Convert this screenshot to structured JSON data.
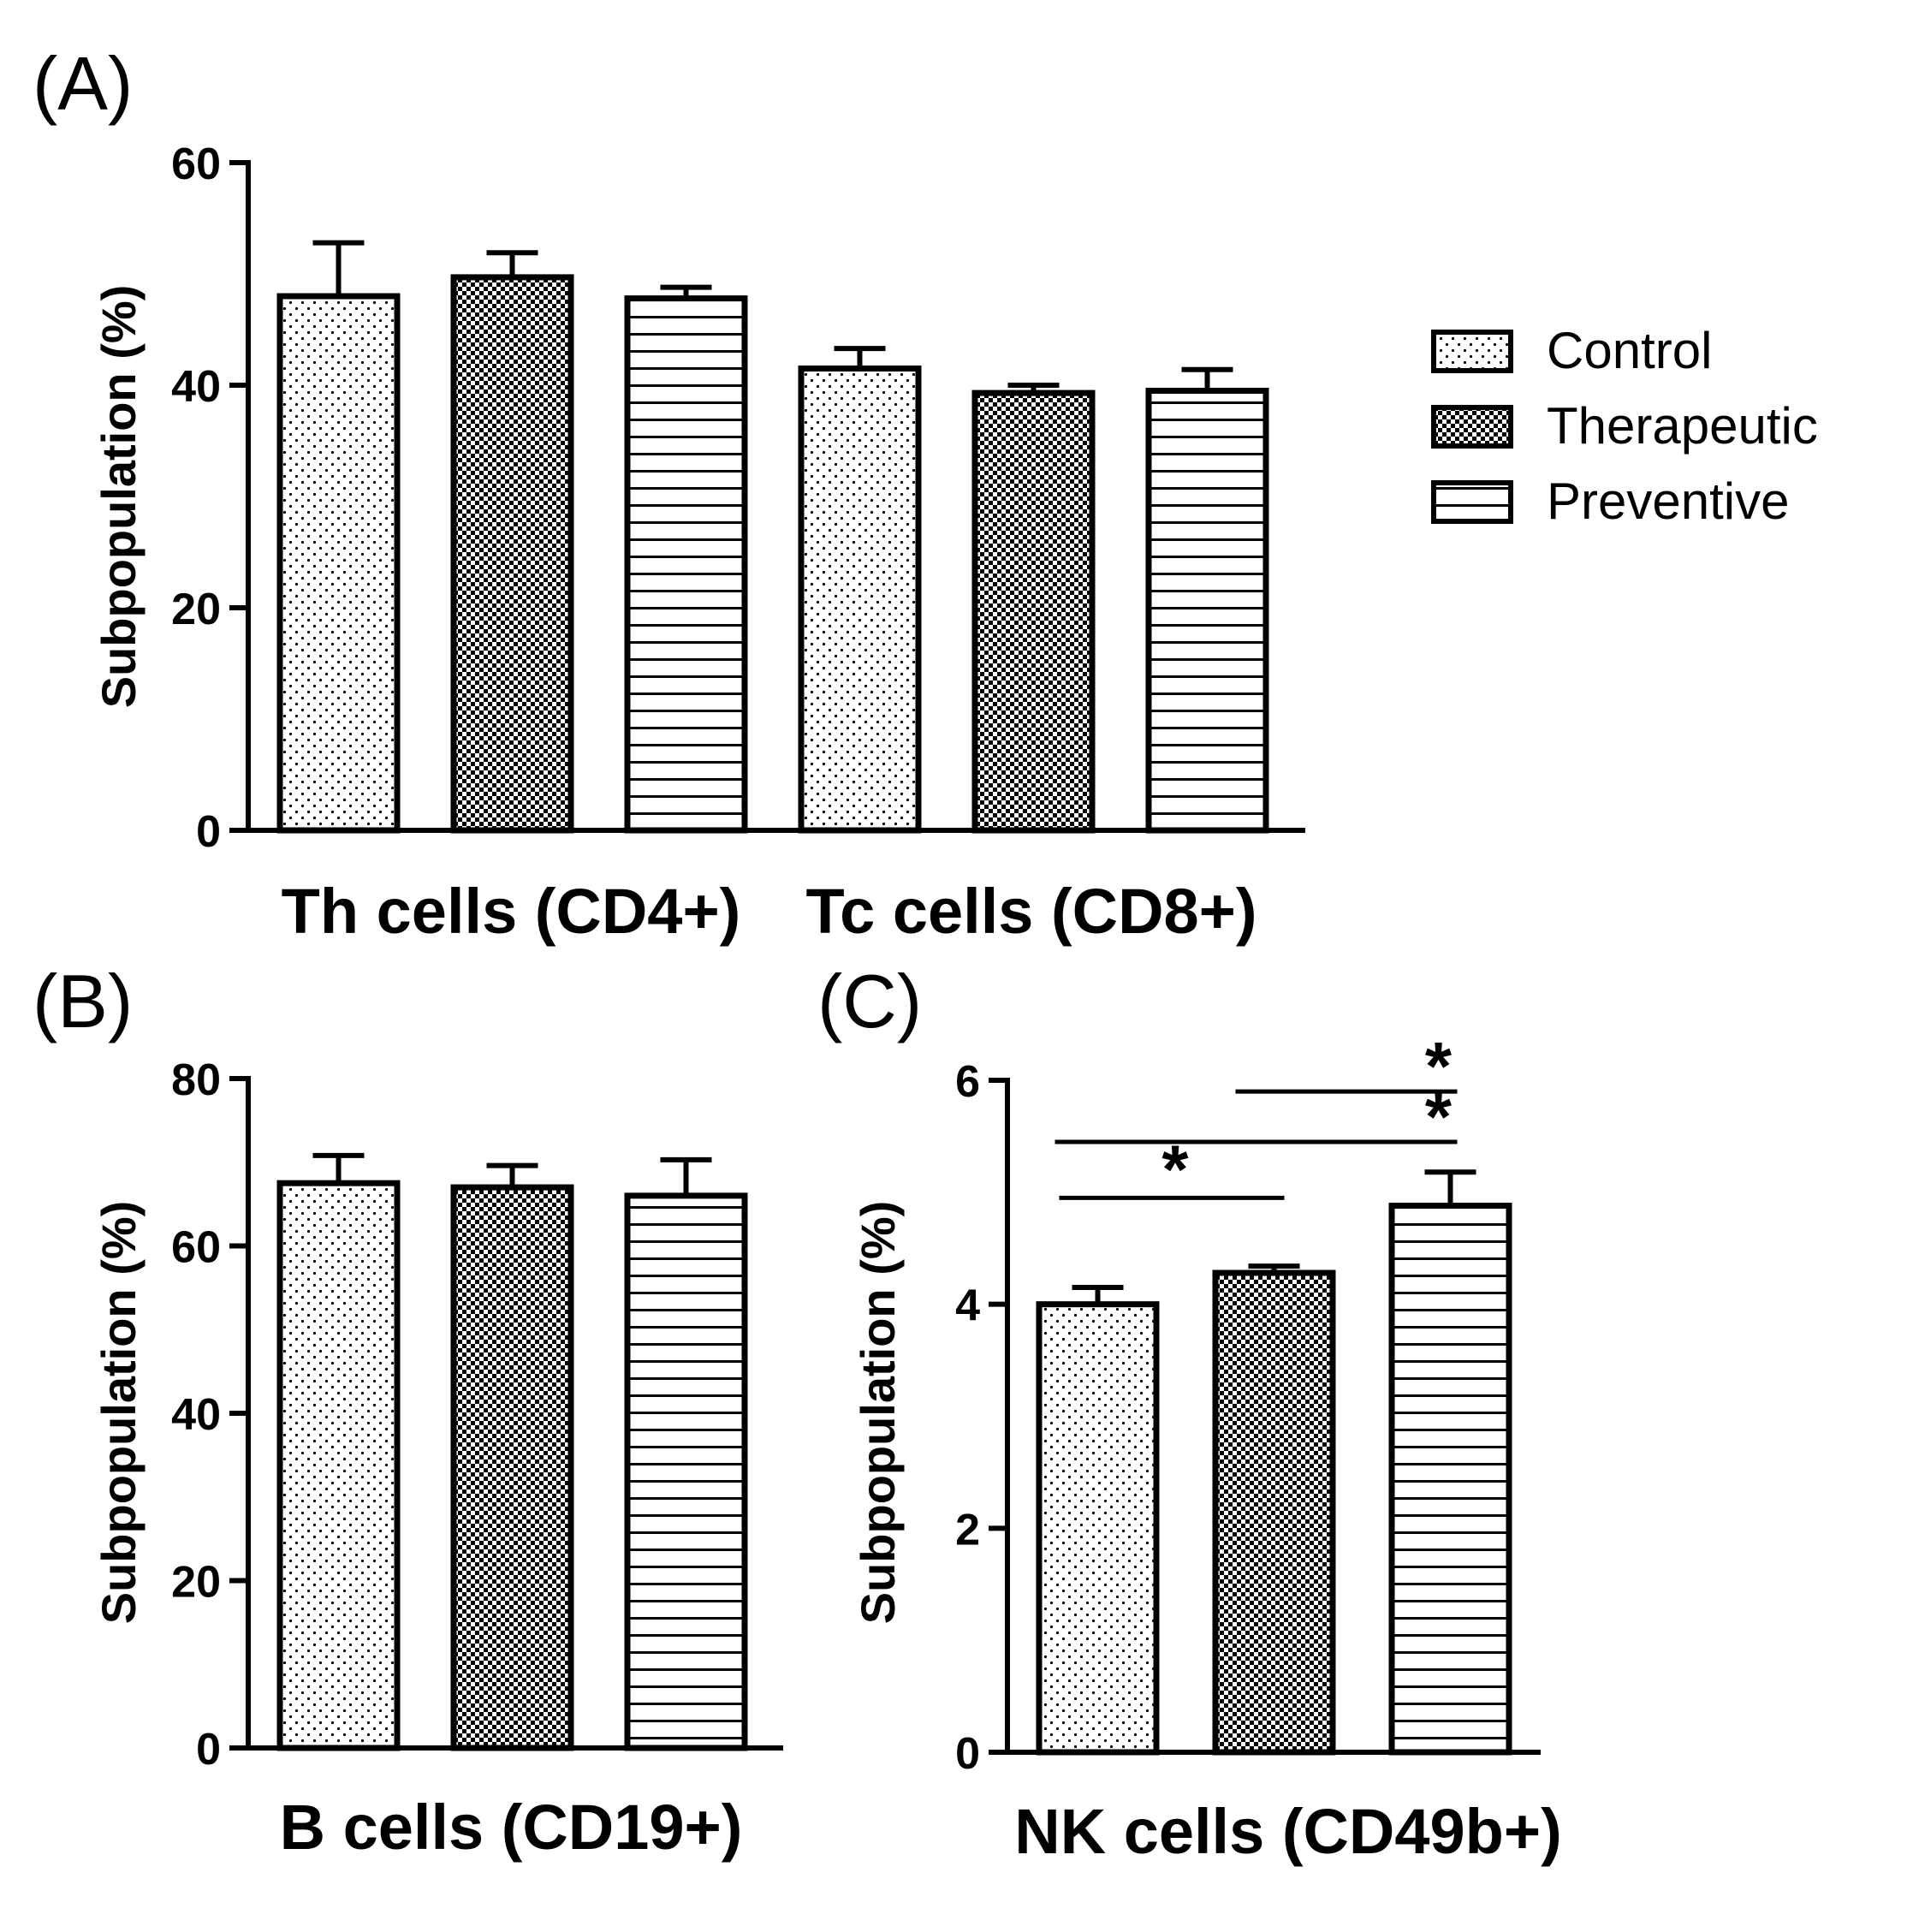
{
  "colors": {
    "ink": "#000000",
    "background": "#ffffff"
  },
  "legend": {
    "items": [
      {
        "label": "Control",
        "pattern": "dots"
      },
      {
        "label": "Therapeutic",
        "pattern": "checker"
      },
      {
        "label": "Preventive",
        "pattern": "stripes"
      }
    ]
  },
  "chart_data": [
    {
      "panel": "(A)",
      "type": "bar",
      "ylabel": "Subpopulation (%)",
      "ylim": [
        0,
        60
      ],
      "yticks": [
        0,
        20,
        40,
        60
      ],
      "categories": [
        "Th cells (CD4+)",
        "Tc cells (CD8+)"
      ],
      "series": [
        {
          "name": "Control",
          "values": [
            48.0,
            41.5
          ],
          "errors": [
            4.8,
            1.8
          ]
        },
        {
          "name": "Therapeutic",
          "values": [
            49.7,
            39.3
          ],
          "errors": [
            2.2,
            0.7
          ]
        },
        {
          "name": "Preventive",
          "values": [
            47.8,
            39.5
          ],
          "errors": [
            1.0,
            1.9
          ]
        }
      ],
      "significance": []
    },
    {
      "panel": "(B)",
      "type": "bar",
      "ylabel": "Subpopulation (%)",
      "ylim": [
        0,
        80
      ],
      "yticks": [
        0,
        20,
        40,
        60,
        80
      ],
      "categories": [
        "B cells (CD19+)"
      ],
      "series": [
        {
          "name": "Control",
          "values": [
            67.5
          ],
          "errors": [
            3.3
          ]
        },
        {
          "name": "Therapeutic",
          "values": [
            67.0
          ],
          "errors": [
            2.6
          ]
        },
        {
          "name": "Preventive",
          "values": [
            66.0
          ],
          "errors": [
            4.3
          ]
        }
      ],
      "significance": []
    },
    {
      "panel": "(C)",
      "type": "bar",
      "ylabel": "Subpopulation (%)",
      "ylim": [
        0,
        6
      ],
      "yticks": [
        0,
        2,
        4,
        6
      ],
      "categories": [
        "NK cells (CD49b+)"
      ],
      "series": [
        {
          "name": "Control",
          "values": [
            4.0
          ],
          "errors": [
            0.15
          ]
        },
        {
          "name": "Therapeutic",
          "values": [
            4.28
          ],
          "errors": [
            0.06
          ]
        },
        {
          "name": "Preventive",
          "values": [
            4.88
          ],
          "errors": [
            0.3
          ]
        }
      ],
      "significance": [
        {
          "from": "Control",
          "to": "Therapeutic",
          "y": 4.95,
          "label": "*"
        },
        {
          "from": "Control",
          "to": "Preventive",
          "y": 5.45,
          "label": "*"
        },
        {
          "from": "Therapeutic",
          "to": "Preventive",
          "y": 5.9,
          "label": "*"
        }
      ]
    }
  ]
}
